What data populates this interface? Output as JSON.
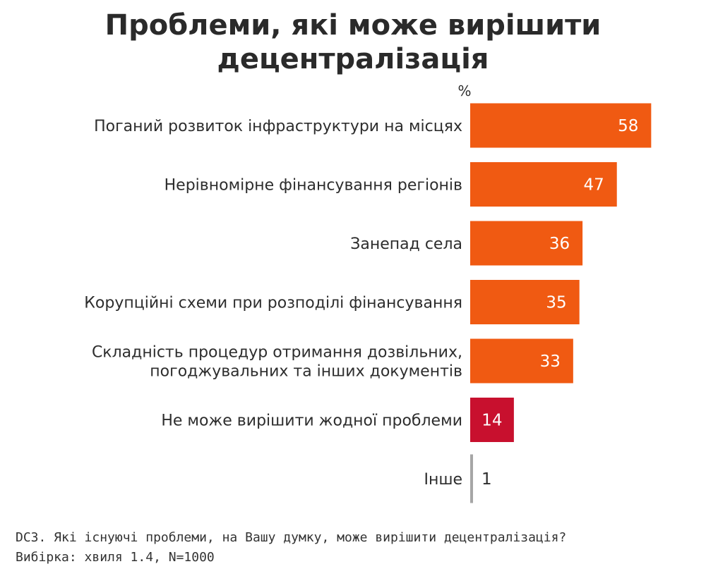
{
  "chart_data": {
    "type": "bar",
    "orientation": "horizontal",
    "title": [
      "Проблеми, які може вирішити",
      "децентралізація"
    ],
    "unit_label": "%",
    "categories": [
      [
        "Поганий розвиток інфраструктури на місцях"
      ],
      [
        "Нерівномірне фінансування регіонів"
      ],
      [
        "Занепад села"
      ],
      [
        "Корупційні схеми при розподілі фінансування"
      ],
      [
        "Складність процедур отримання дозвільних,",
        "погоджувальних та інших документів"
      ],
      [
        "Не може вирішити жодної проблеми"
      ],
      [
        "Інше"
      ]
    ],
    "values": [
      58,
      47,
      36,
      35,
      33,
      14,
      1
    ],
    "value_labels": [
      "58",
      "47",
      "36",
      "35",
      "33",
      "14",
      "1"
    ],
    "bar_colors": [
      "#f05a12",
      "#f05a12",
      "#f05a12",
      "#f05a12",
      "#f05a12",
      "#c8102e",
      "#a6a6a6"
    ],
    "xlim": [
      0,
      60
    ],
    "grid": false,
    "legend": "none"
  },
  "footnote": {
    "question": "DC3. Які існуючі проблеми, на Вашу думку, може вирішити децентралізація?",
    "sample": "Вибірка: хвиля 1.4, N=1000"
  }
}
